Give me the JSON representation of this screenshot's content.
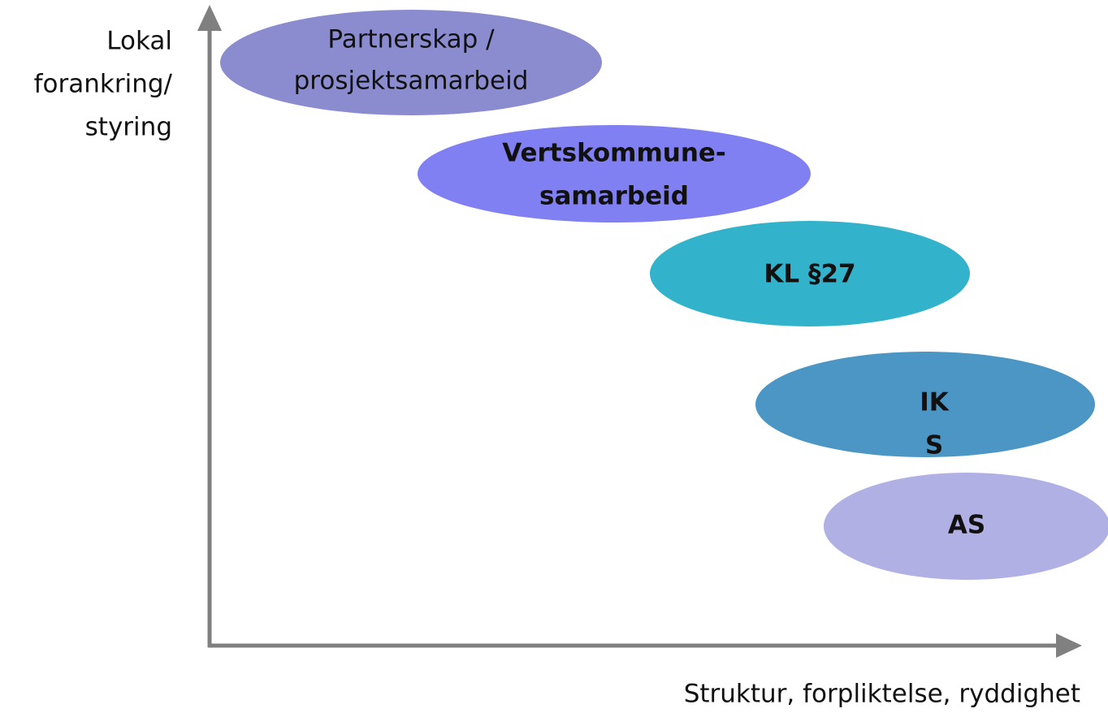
{
  "y_axis_label": {
    "lines": [
      "Lokal",
      "forankring/",
      "styring"
    ]
  },
  "x_axis_label": "Struktur, forpliktelse, ryddighet",
  "nodes": [
    {
      "lines": [
        "Partnerskap /",
        "prosjektsamarbeid"
      ]
    },
    {
      "lines": [
        "Vertskommune-",
        "samarbeid"
      ]
    },
    {
      "lines": [
        "KL §27"
      ]
    },
    {
      "lines": [
        "IK",
        "S"
      ]
    },
    {
      "lines": [
        "AS"
      ]
    }
  ]
}
